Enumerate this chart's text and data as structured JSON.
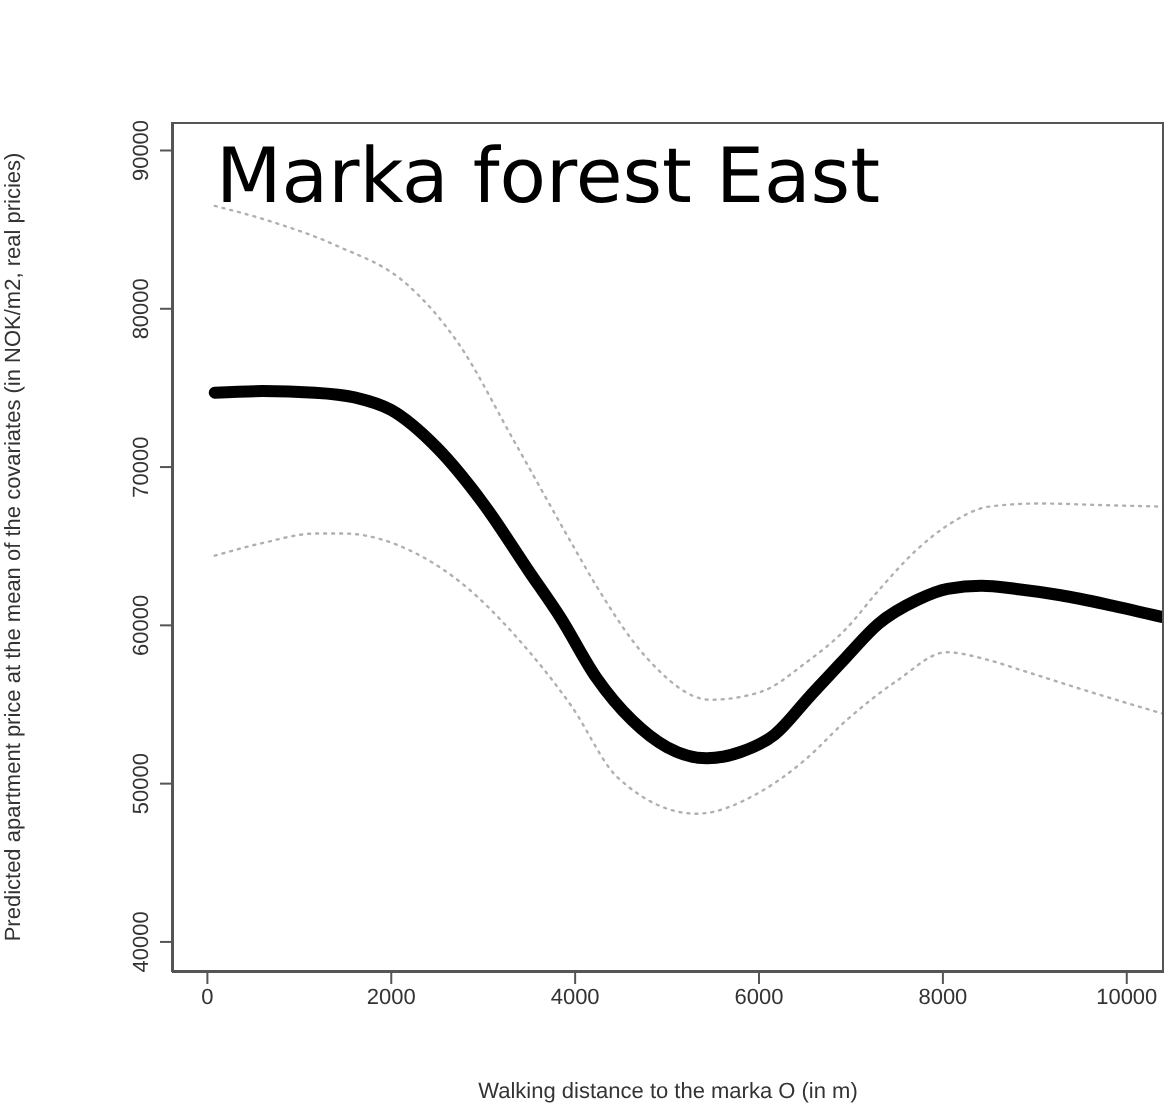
{
  "chart_data": {
    "type": "line",
    "title": "Marka forest East",
    "xlabel": "Walking distance to the marka O (in m)",
    "ylabel": "Predicted apartment price at the mean of the covariates (in NOK/m2, real pricies)",
    "xlim": [
      -385,
      10405
    ],
    "ylim": [
      38100,
      91800
    ],
    "xticks": [
      0,
      2000,
      4000,
      6000,
      8000,
      10000
    ],
    "yticks": [
      40000,
      50000,
      60000,
      70000,
      80000,
      90000
    ],
    "marker": "none",
    "series": [
      {
        "color": "#000000",
        "line_style": "solid",
        "x": [
          80,
          600,
          1170,
          1600,
          2000,
          2500,
          3000,
          3500,
          3840,
          4230,
          4620,
          5000,
          5430,
          5800,
          6170,
          6550,
          6950,
          7300,
          7720,
          8050,
          8420,
          8800,
          9280,
          9800,
          10405
        ],
        "values": [
          74700,
          74800,
          74700,
          74400,
          73600,
          71200,
          67700,
          63400,
          60500,
          56700,
          54000,
          52300,
          51600,
          52000,
          53100,
          55500,
          58000,
          60100,
          61600,
          62300,
          62500,
          62300,
          61900,
          61300,
          60500
        ]
      },
      {
        "color": "#b0b0b0",
        "line_style": "dotted",
        "x": [
          80,
          700,
          1400,
          2180,
          2720,
          3340,
          3960,
          4230,
          4770,
          5470,
          6020,
          6500,
          6950,
          7300,
          7720,
          8100,
          8500,
          9050,
          9700,
          10405
        ],
        "values": [
          86500,
          85500,
          84000,
          81500,
          77900,
          71600,
          65200,
          62500,
          58000,
          55300,
          55800,
          57600,
          59800,
          62200,
          64800,
          66500,
          67500,
          67700,
          67600,
          67500
        ]
      },
      {
        "color": "#b0b0b0",
        "line_style": "dotted",
        "x": [
          80,
          600,
          1170,
          1480,
          2250,
          2800,
          3340,
          3960,
          4460,
          5320,
          6020,
          6500,
          6950,
          7500,
          8040,
          8500,
          8890,
          9600,
          10405
        ],
        "values": [
          64400,
          65200,
          65800,
          65800,
          64600,
          62500,
          59400,
          54900,
          50400,
          48100,
          49500,
          51500,
          54000,
          56500,
          58300,
          57800,
          57100,
          55800,
          54400
        ]
      }
    ]
  }
}
